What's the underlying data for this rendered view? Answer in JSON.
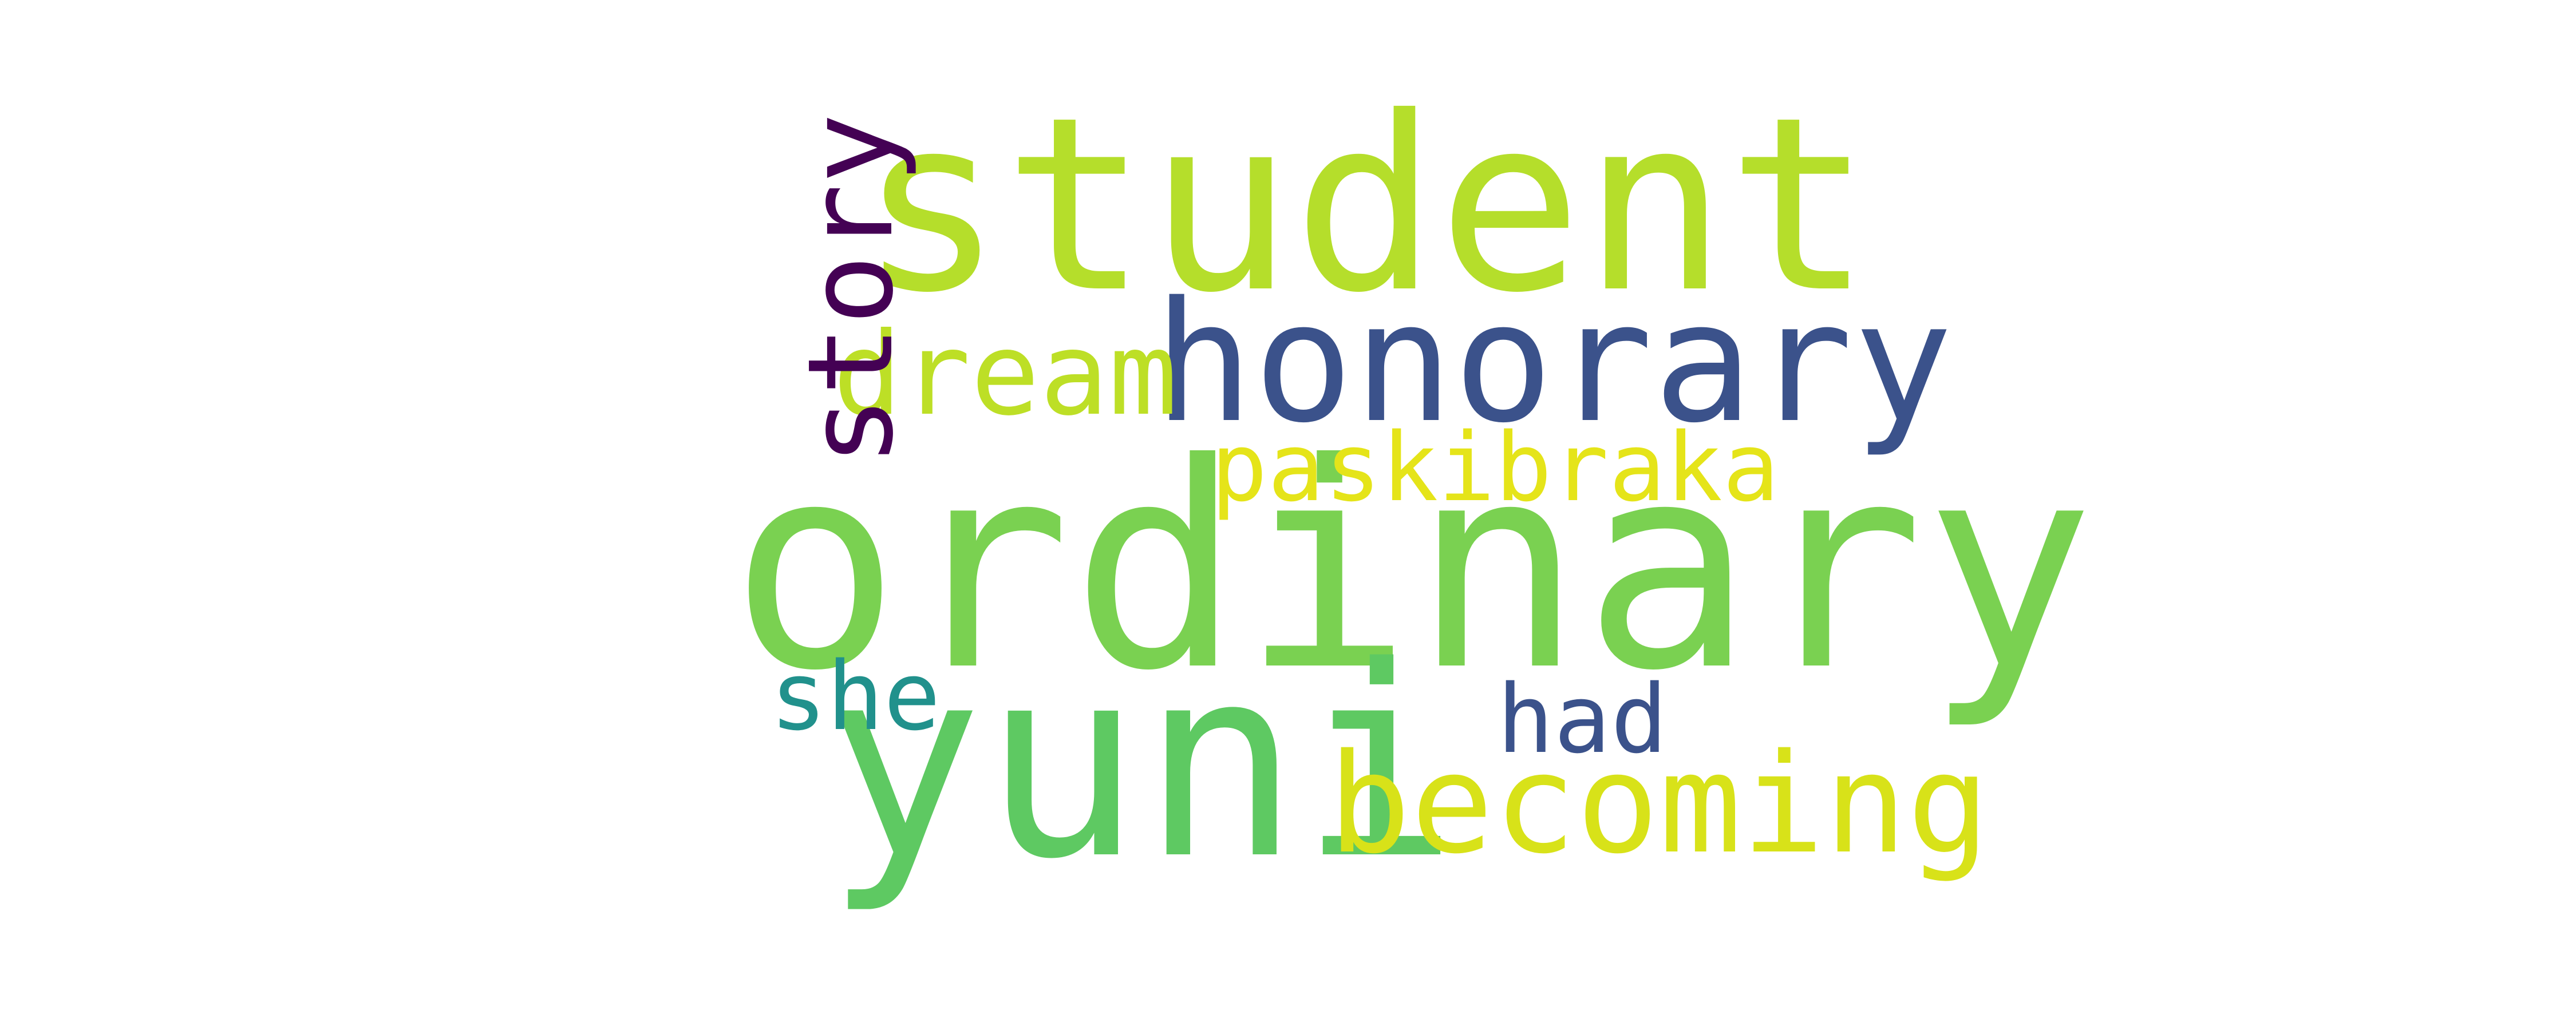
{
  "words": [
    {
      "key": "student",
      "text": "student",
      "color": "#b5de2b"
    },
    {
      "key": "ordinary",
      "text": "ordinary",
      "color": "#7ad151"
    },
    {
      "key": "honorary",
      "text": "honorary",
      "color": "#3b528b"
    },
    {
      "key": "yuni",
      "text": "yuni",
      "color": "#5ec962"
    },
    {
      "key": "becoming",
      "text": "becoming",
      "color": "#d8e219"
    },
    {
      "key": "paskibraka",
      "text": "paskibraka",
      "color": "#e5e419"
    },
    {
      "key": "dream",
      "text": "dream",
      "color": "#bddf26"
    },
    {
      "key": "had",
      "text": "had",
      "color": "#3b528b"
    },
    {
      "key": "she",
      "text": "she",
      "color": "#21918c"
    },
    {
      "key": "story",
      "text": "story",
      "color": "#440154",
      "orientation": "vertical"
    }
  ]
}
